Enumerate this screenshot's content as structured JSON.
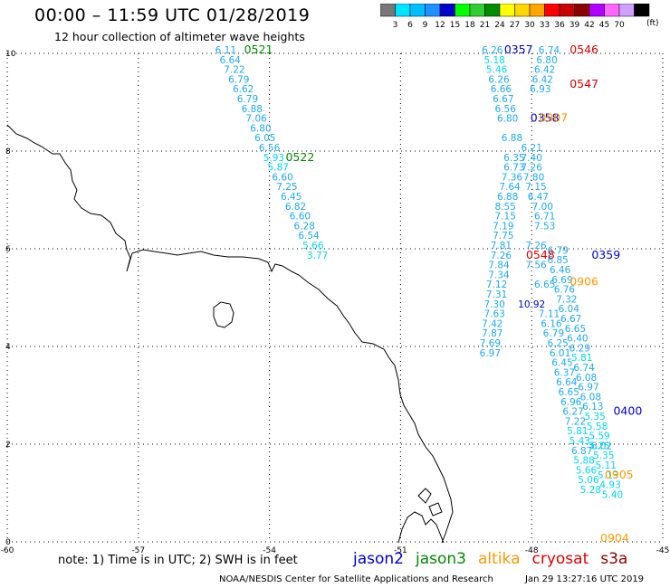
{
  "title": "00:00 – 11:59 UTC 01/28/2019",
  "subtitle": "12 hour collection of altimeter wave heights",
  "note": "note:  1) Time is in UTC;  2) SWH is in feet",
  "footer_left": "NOAA/NESDIS Center for Satellite Applications and Research",
  "footer_right": "Jan 29 13:27:16 UTC 2019",
  "scale": {
    "unit": "(ft)",
    "labels": [
      "3",
      "6",
      "9",
      "12",
      "15",
      "18",
      "21",
      "24",
      "27",
      "30",
      "33",
      "36",
      "39",
      "42",
      "45",
      "70"
    ],
    "colors": [
      "#777777",
      "#00e5ff",
      "#00bfff",
      "#1e90ff",
      "#0000cd",
      "#00ff00",
      "#32cd32",
      "#008b00",
      "#ffff00",
      "#ffd700",
      "#ffa500",
      "#ff0000",
      "#c80000",
      "#8b0000",
      "#b000ff",
      "#ff66ff",
      "#d0a0ff",
      "#000000"
    ]
  },
  "legend": [
    {
      "label": "jason2",
      "color": "#0000cd"
    },
    {
      "label": "jason3",
      "color": "#008800"
    },
    {
      "label": "altika",
      "color": "#ff9900"
    },
    {
      "label": "cryosat",
      "color": "#dd0000"
    },
    {
      "label": "s3a",
      "color": "#8b0000"
    }
  ],
  "chart_data": {
    "type": "scatter",
    "xlim": [
      -60,
      -45
    ],
    "ylim": [
      0,
      10
    ],
    "x_ticks": [
      "-60",
      "-57",
      "-54",
      "-51",
      "-48",
      "-45"
    ],
    "y_ticks": [
      "0",
      "2",
      "4",
      "6",
      "8",
      "10"
    ],
    "grid": true,
    "track_labels": [
      {
        "text": "0521",
        "lon": -54.25,
        "lat": 10.0,
        "color": "#008800"
      },
      {
        "text": "0522",
        "lon": -53.3,
        "lat": 7.8,
        "color": "#008800"
      },
      {
        "text": "0357",
        "lon": -48.3,
        "lat": 10.0,
        "color": "#0000cd"
      },
      {
        "text": "0546",
        "lon": -46.8,
        "lat": 10.0,
        "color": "#dd0000"
      },
      {
        "text": "0547",
        "lon": -46.8,
        "lat": 9.3,
        "color": "#dd0000"
      },
      {
        "text": "0358",
        "lon": -47.7,
        "lat": 8.6,
        "color": "#0000cd"
      },
      {
        "text": "0907",
        "lon": -47.5,
        "lat": 8.6,
        "color": "#ff9900"
      },
      {
        "text": "0548",
        "lon": -47.8,
        "lat": 5.8,
        "color": "#dd0000"
      },
      {
        "text": "0359",
        "lon": -46.3,
        "lat": 5.8,
        "color": "#0000cd"
      },
      {
        "text": "0906",
        "lon": -46.8,
        "lat": 5.25,
        "color": "#ff9900"
      },
      {
        "text": "0400",
        "lon": -45.8,
        "lat": 2.6,
        "color": "#0000cd"
      },
      {
        "text": "0905",
        "lon": -46.0,
        "lat": 1.3,
        "color": "#ff9900"
      },
      {
        "text": "0904",
        "lon": -46.1,
        "lat": 0.0,
        "color": "#ff9900"
      }
    ],
    "series": [
      {
        "points": [
          {
            "lon": -55.0,
            "lat": 10.0,
            "v": "6.11"
          },
          {
            "lon": -54.9,
            "lat": 9.8,
            "v": "6.64"
          },
          {
            "lon": -54.8,
            "lat": 9.6,
            "v": "7.22"
          },
          {
            "lon": -54.7,
            "lat": 9.4,
            "v": "6.79"
          },
          {
            "lon": -54.6,
            "lat": 9.2,
            "v": "6.62"
          },
          {
            "lon": -54.5,
            "lat": 9.0,
            "v": "6.79"
          },
          {
            "lon": -54.4,
            "lat": 8.8,
            "v": "6.88"
          },
          {
            "lon": -54.3,
            "lat": 8.6,
            "v": "7.06"
          },
          {
            "lon": -54.2,
            "lat": 8.4,
            "v": "6.80"
          },
          {
            "lon": -54.1,
            "lat": 8.2,
            "v": "6.05"
          },
          {
            "lon": -54.0,
            "lat": 8.0,
            "v": "6.56"
          },
          {
            "lon": -53.9,
            "lat": 7.8,
            "v": "5.93"
          },
          {
            "lon": -53.8,
            "lat": 7.6,
            "v": "5.87"
          },
          {
            "lon": -53.7,
            "lat": 7.4,
            "v": "6.60"
          },
          {
            "lon": -53.6,
            "lat": 7.2,
            "v": "7.25"
          },
          {
            "lon": -53.5,
            "lat": 7.0,
            "v": "6.45"
          },
          {
            "lon": -53.4,
            "lat": 6.8,
            "v": "6.82"
          },
          {
            "lon": -53.3,
            "lat": 6.6,
            "v": "6.60"
          },
          {
            "lon": -53.2,
            "lat": 6.4,
            "v": "6.28"
          },
          {
            "lon": -53.1,
            "lat": 6.2,
            "v": "6.54"
          },
          {
            "lon": -53.0,
            "lat": 6.0,
            "v": "5.66"
          },
          {
            "lon": -52.9,
            "lat": 5.8,
            "v": "3.77"
          }
        ]
      },
      {
        "points": [
          {
            "lon": -48.9,
            "lat": 10.0,
            "v": "6.26"
          },
          {
            "lon": -48.85,
            "lat": 9.8,
            "v": "5.18"
          },
          {
            "lon": -48.8,
            "lat": 9.6,
            "v": "5.46"
          },
          {
            "lon": -48.75,
            "lat": 9.4,
            "v": "6.26"
          },
          {
            "lon": -48.7,
            "lat": 9.2,
            "v": "6.66"
          },
          {
            "lon": -48.65,
            "lat": 9.0,
            "v": "6.67"
          },
          {
            "lon": -48.6,
            "lat": 8.8,
            "v": "6.56"
          },
          {
            "lon": -48.55,
            "lat": 8.6,
            "v": "6.80"
          },
          {
            "lon": -48.45,
            "lat": 8.2,
            "v": "6.88"
          },
          {
            "lon": -48.4,
            "lat": 7.8,
            "v": "6.35"
          },
          {
            "lon": -48.4,
            "lat": 7.6,
            "v": "6.73"
          },
          {
            "lon": -48.45,
            "lat": 7.4,
            "v": "7.36"
          },
          {
            "lon": -48.5,
            "lat": 7.2,
            "v": "7.64"
          },
          {
            "lon": -48.55,
            "lat": 7.0,
            "v": "6.88"
          },
          {
            "lon": -48.6,
            "lat": 6.8,
            "v": "8.55"
          },
          {
            "lon": -48.6,
            "lat": 6.6,
            "v": "7.15"
          },
          {
            "lon": -48.65,
            "lat": 6.4,
            "v": "7.19"
          },
          {
            "lon": -48.65,
            "lat": 6.2,
            "v": "7.75"
          },
          {
            "lon": -48.7,
            "lat": 6.0,
            "v": "7.81"
          },
          {
            "lon": -48.7,
            "lat": 5.8,
            "v": "7.26"
          },
          {
            "lon": -48.75,
            "lat": 5.6,
            "v": "7.84"
          },
          {
            "lon": -48.75,
            "lat": 5.4,
            "v": "7.34"
          },
          {
            "lon": -48.8,
            "lat": 5.2,
            "v": "7.12"
          },
          {
            "lon": -48.8,
            "lat": 5.0,
            "v": "7.31"
          },
          {
            "lon": -48.85,
            "lat": 4.8,
            "v": "7.30"
          },
          {
            "lon": -48.85,
            "lat": 4.6,
            "v": "7.63"
          },
          {
            "lon": -48.9,
            "lat": 4.4,
            "v": "7.42"
          },
          {
            "lon": -48.9,
            "lat": 4.2,
            "v": "7.87"
          },
          {
            "lon": -48.95,
            "lat": 4.0,
            "v": "7.69"
          },
          {
            "lon": -48.95,
            "lat": 3.8,
            "v": "6.97"
          }
        ]
      },
      {
        "points": [
          {
            "lon": -47.6,
            "lat": 10.0,
            "v": "6.74"
          },
          {
            "lon": -47.65,
            "lat": 9.8,
            "v": "6.80"
          },
          {
            "lon": -47.7,
            "lat": 9.6,
            "v": "6.42"
          },
          {
            "lon": -47.75,
            "lat": 9.4,
            "v": "6.42"
          },
          {
            "lon": -47.8,
            "lat": 9.2,
            "v": "6.93"
          },
          {
            "lon": -48.0,
            "lat": 8.0,
            "v": "6.21"
          },
          {
            "lon": -48.0,
            "lat": 7.8,
            "v": "7.40"
          },
          {
            "lon": -48.0,
            "lat": 7.6,
            "v": "7.26"
          },
          {
            "lon": -47.95,
            "lat": 7.4,
            "v": "7.80"
          },
          {
            "lon": -47.9,
            "lat": 7.2,
            "v": "7.15"
          },
          {
            "lon": -47.85,
            "lat": 7.0,
            "v": "6.47"
          },
          {
            "lon": -47.75,
            "lat": 6.8,
            "v": "7.00"
          },
          {
            "lon": -47.7,
            "lat": 6.6,
            "v": "6.71"
          },
          {
            "lon": -47.7,
            "lat": 6.4,
            "v": "7.53"
          }
        ]
      },
      {
        "points": [
          {
            "lon": -47.9,
            "lat": 6.0,
            "v": "7.26"
          },
          {
            "lon": -47.9,
            "lat": 5.6,
            "v": "7.56"
          },
          {
            "lon": -47.7,
            "lat": 5.2,
            "v": "6.65"
          },
          {
            "lon": -48.0,
            "lat": 4.8,
            "v": "10.92"
          },
          {
            "lon": -47.6,
            "lat": 4.6,
            "v": "7.11"
          },
          {
            "lon": -47.55,
            "lat": 4.4,
            "v": "6.16"
          },
          {
            "lon": -47.5,
            "lat": 4.2,
            "v": "6.79"
          },
          {
            "lon": -47.4,
            "lat": 4.0,
            "v": "6.25"
          },
          {
            "lon": -47.35,
            "lat": 3.8,
            "v": "6.01"
          },
          {
            "lon": -47.3,
            "lat": 3.6,
            "v": "6.45"
          },
          {
            "lon": -47.25,
            "lat": 3.4,
            "v": "6.37"
          },
          {
            "lon": -47.2,
            "lat": 3.2,
            "v": "6.64"
          },
          {
            "lon": -47.15,
            "lat": 3.0,
            "v": "6.65"
          },
          {
            "lon": -47.1,
            "lat": 2.8,
            "v": "6.96"
          },
          {
            "lon": -47.05,
            "lat": 2.6,
            "v": "6.27"
          },
          {
            "lon": -47.0,
            "lat": 2.4,
            "v": "7.22"
          },
          {
            "lon": -46.95,
            "lat": 2.2,
            "v": "5.81"
          },
          {
            "lon": -46.9,
            "lat": 2.0,
            "v": "5.43"
          },
          {
            "lon": -46.85,
            "lat": 1.8,
            "v": "6.87"
          },
          {
            "lon": -46.8,
            "lat": 1.6,
            "v": "5.88"
          },
          {
            "lon": -46.75,
            "lat": 1.4,
            "v": "5.66"
          },
          {
            "lon": -46.7,
            "lat": 1.2,
            "v": "5.06"
          },
          {
            "lon": -46.65,
            "lat": 1.0,
            "v": "5.28"
          }
        ]
      },
      {
        "points": [
          {
            "lon": -47.4,
            "lat": 5.9,
            "v": "6.79"
          },
          {
            "lon": -47.4,
            "lat": 5.7,
            "v": "6.85"
          },
          {
            "lon": -47.35,
            "lat": 5.5,
            "v": "6.46"
          },
          {
            "lon": -47.3,
            "lat": 5.3,
            "v": "6.69"
          },
          {
            "lon": -47.25,
            "lat": 5.1,
            "v": "6.76"
          },
          {
            "lon": -47.2,
            "lat": 4.9,
            "v": "7.32"
          },
          {
            "lon": -47.15,
            "lat": 4.7,
            "v": "6.04"
          },
          {
            "lon": -47.1,
            "lat": 4.5,
            "v": "6.67"
          },
          {
            "lon": -47.0,
            "lat": 4.3,
            "v": "6.65"
          },
          {
            "lon": -46.95,
            "lat": 4.1,
            "v": "6.40"
          },
          {
            "lon": -46.9,
            "lat": 3.9,
            "v": "6.29"
          },
          {
            "lon": -46.85,
            "lat": 3.7,
            "v": "5.81"
          },
          {
            "lon": -46.8,
            "lat": 3.5,
            "v": "6.74"
          },
          {
            "lon": -46.75,
            "lat": 3.3,
            "v": "6.08"
          },
          {
            "lon": -46.7,
            "lat": 3.1,
            "v": "6.97"
          },
          {
            "lon": -46.65,
            "lat": 2.9,
            "v": "6.08"
          },
          {
            "lon": -46.6,
            "lat": 2.7,
            "v": "6.13"
          },
          {
            "lon": -46.55,
            "lat": 2.5,
            "v": "5.35"
          },
          {
            "lon": -46.5,
            "lat": 2.3,
            "v": "5.58"
          },
          {
            "lon": -46.45,
            "lat": 2.1,
            "v": "5.59"
          },
          {
            "lon": -46.4,
            "lat": 1.9,
            "v": "6.02"
          },
          {
            "lon": -46.35,
            "lat": 1.7,
            "v": "5.35"
          },
          {
            "lon": -46.3,
            "lat": 1.5,
            "v": "5.11"
          },
          {
            "lon": -46.25,
            "lat": 1.3,
            "v": "5.13"
          },
          {
            "lon": -46.2,
            "lat": 1.1,
            "v": "4.93"
          },
          {
            "lon": -46.15,
            "lat": 0.9,
            "v": "5.40"
          },
          {
            "lon": -46.45,
            "lat": 1.9,
            "v": "5.25"
          }
        ]
      }
    ]
  }
}
